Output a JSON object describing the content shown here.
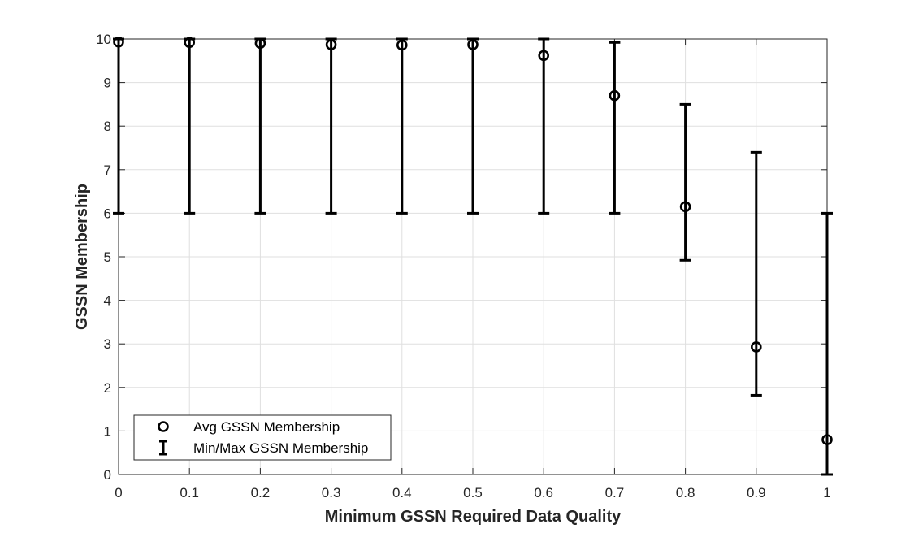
{
  "chart_data": {
    "type": "scatter",
    "title": "",
    "xlabel": "Minimum GSSN Required Data Quality",
    "ylabel": "GSSN Membership",
    "xlim": [
      0,
      1
    ],
    "ylim": [
      0,
      10
    ],
    "xticks": [
      0,
      0.1,
      0.2,
      0.3,
      0.4,
      0.5,
      0.6,
      0.7,
      0.8,
      0.9,
      1
    ],
    "xtick_labels": [
      "0",
      "0.1",
      "0.2",
      "0.3",
      "0.4",
      "0.5",
      "0.6",
      "0.7",
      "0.8",
      "0.9",
      "1"
    ],
    "yticks": [
      0,
      1,
      2,
      3,
      4,
      5,
      6,
      7,
      8,
      9,
      10
    ],
    "ytick_labels": [
      "0",
      "1",
      "2",
      "3",
      "4",
      "5",
      "6",
      "7",
      "8",
      "9",
      "10"
    ],
    "grid": true,
    "legend_position": "bottom-left",
    "x": [
      0,
      0.1,
      0.2,
      0.3,
      0.4,
      0.5,
      0.6,
      0.7,
      0.8,
      0.9,
      1
    ],
    "series": [
      {
        "name": "Avg GSSN Membership",
        "marker": "circle",
        "values": [
          9.93,
          9.92,
          9.9,
          9.87,
          9.86,
          9.87,
          9.62,
          8.7,
          6.15,
          2.93,
          0.8
        ]
      },
      {
        "name": "Min/Max GSSN Membership",
        "marker": "errorbar",
        "min": [
          6,
          6,
          6,
          6,
          6,
          6,
          6,
          6,
          4.92,
          1.82,
          0
        ],
        "max": [
          10,
          10,
          10,
          10,
          10,
          10,
          10,
          9.92,
          8.5,
          7.4,
          6
        ]
      }
    ],
    "colors": {
      "marks": "#000000",
      "grid": "#dfdfdf",
      "axis": "#262626"
    }
  }
}
